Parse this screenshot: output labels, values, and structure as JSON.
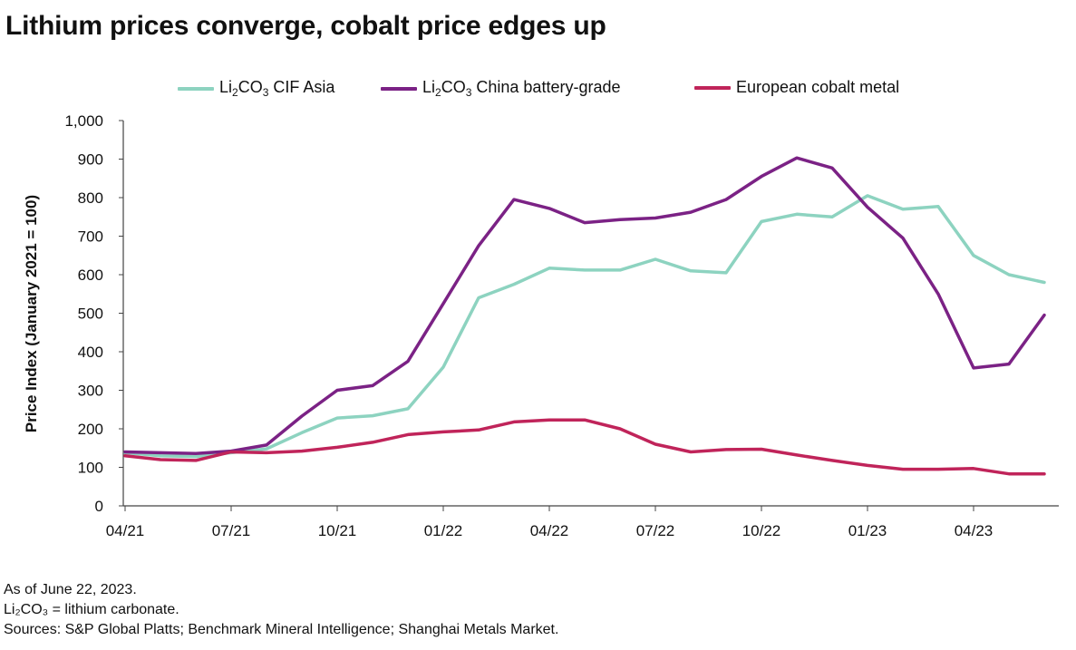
{
  "chart_data": {
    "type": "line",
    "title": "Lithium prices converge, cobalt price edges up",
    "xlabel": "",
    "ylabel": "Price Index (January 2021 = 100)",
    "ylim": [
      0,
      1000
    ],
    "yticks": [
      "0",
      "100",
      "200",
      "300",
      "400",
      "500",
      "600",
      "700",
      "800",
      "900",
      "1,000"
    ],
    "x": [
      "04/21",
      "05/21",
      "06/21",
      "07/21",
      "08/21",
      "09/21",
      "10/21",
      "11/21",
      "12/21",
      "01/22",
      "02/22",
      "03/22",
      "04/22",
      "05/22",
      "06/22",
      "07/22",
      "08/22",
      "09/22",
      "10/22",
      "11/22",
      "12/22",
      "01/23",
      "02/23",
      "03/23",
      "04/23",
      "05/23",
      "06/23"
    ],
    "xtick_labels": [
      "04/21",
      "07/21",
      "10/21",
      "01/22",
      "04/22",
      "07/22",
      "10/22",
      "01/23",
      "04/23"
    ],
    "series": [
      {
        "name": "Li₂CO₃ CIF Asia",
        "legend_main": "Li",
        "legend_sub": "2",
        "legend_mid": "CO",
        "legend_sub2": "3",
        "legend_end": " CIF Asia",
        "color": "#8dd3c0",
        "values": [
          138,
          130,
          128,
          138,
          148,
          190,
          228,
          234,
          252,
          360,
          540,
          575,
          617,
          612,
          612,
          640,
          610,
          605,
          738,
          757,
          750,
          805,
          770,
          777,
          650,
          600,
          580
        ]
      },
      {
        "name": "Li₂CO₃ China battery-grade",
        "legend_main": "Li",
        "legend_sub": "2",
        "legend_mid": "CO",
        "legend_sub2": "3",
        "legend_end": " China battery-grade",
        "color": "#7b2285",
        "values": [
          140,
          138,
          136,
          142,
          158,
          233,
          300,
          312,
          375,
          525,
          675,
          795,
          772,
          735,
          743,
          747,
          762,
          795,
          855,
          903,
          877,
          775,
          695,
          550,
          358,
          368,
          495
        ]
      },
      {
        "name": "European cobalt metal",
        "legend_main": "European cobalt metal",
        "color": "#c0245a",
        "values": [
          130,
          120,
          118,
          140,
          138,
          142,
          152,
          165,
          185,
          192,
          197,
          218,
          223,
          223,
          200,
          160,
          140,
          146,
          147,
          132,
          118,
          105,
          95,
          95,
          97,
          83,
          83
        ]
      }
    ],
    "grid": false,
    "legend_position": "top"
  },
  "notes": [
    "As of June 22, 2023.",
    "Li₂CO₃ = lithium carbonate.",
    "Sources: S&P Global Platts; Benchmark Mineral Intelligence; Shanghai Metals Market."
  ]
}
